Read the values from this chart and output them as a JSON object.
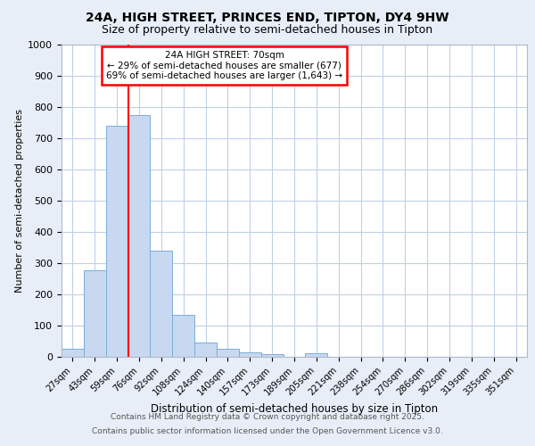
{
  "title_line1": "24A, HIGH STREET, PRINCES END, TIPTON, DY4 9HW",
  "title_line2": "Size of property relative to semi-detached houses in Tipton",
  "xlabel": "Distribution of semi-detached houses by size in Tipton",
  "ylabel": "Number of semi-detached properties",
  "categories": [
    "27sqm",
    "43sqm",
    "59sqm",
    "76sqm",
    "92sqm",
    "108sqm",
    "124sqm",
    "140sqm",
    "157sqm",
    "173sqm",
    "189sqm",
    "205sqm",
    "221sqm",
    "238sqm",
    "254sqm",
    "270sqm",
    "286sqm",
    "302sqm",
    "319sqm",
    "335sqm",
    "351sqm"
  ],
  "values": [
    25,
    278,
    740,
    775,
    340,
    135,
    47,
    27,
    13,
    8,
    0,
    12,
    0,
    0,
    0,
    0,
    0,
    0,
    0,
    0,
    0
  ],
  "bar_color": "#c8d8f0",
  "bar_edge_color": "#7aaed6",
  "ylim": [
    0,
    1000
  ],
  "yticks": [
    0,
    100,
    200,
    300,
    400,
    500,
    600,
    700,
    800,
    900,
    1000
  ],
  "red_line_x": 2.5,
  "annotation_text": "24A HIGH STREET: 70sqm\n← 29% of semi-detached houses are smaller (677)\n69% of semi-detached houses are larger (1,643) →",
  "footer_line1": "Contains HM Land Registry data © Crown copyright and database right 2025.",
  "footer_line2": "Contains public sector information licensed under the Open Government Licence v3.0.",
  "background_color": "#e8eef8",
  "plot_bg_color": "#ffffff",
  "grid_color": "#c0d0e8"
}
